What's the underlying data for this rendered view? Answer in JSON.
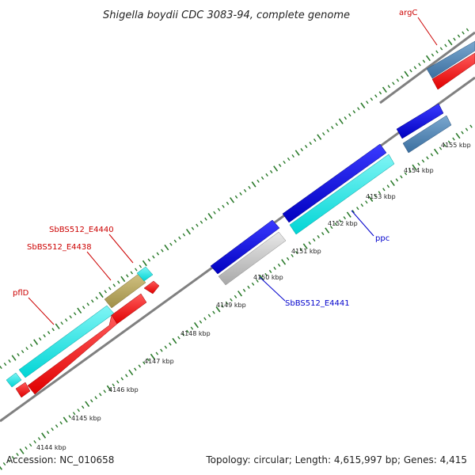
{
  "title": "Shigella boydii CDC 3083-94, complete genome",
  "footer": {
    "accession": "Accession: NC_010658",
    "summary": "Topology: circular; Length: 4,615,997 bp; Genes: 4,415"
  },
  "ticks": {
    "outer": [
      "4144 kbp",
      "4145 kbp",
      "4146 kbp",
      "4147 kbp",
      "4148 kbp",
      "4149 kbp",
      "4150 kbp"
    ],
    "inner": [
      "4151 kbp",
      "4152 kbp",
      "4153 kbp",
      "4154 kbp",
      "4155 kbp"
    ]
  },
  "genes": [
    {
      "name": "pflD",
      "color": "#cc0000",
      "label": "pflD"
    },
    {
      "name": "SbBS512_E4438",
      "color": "#cc0000",
      "label": "SbBS512_E4438"
    },
    {
      "name": "SbBS512_E4440",
      "color": "#cc0000",
      "label": "SbBS512_E4440"
    },
    {
      "name": "SbBS512_E4441",
      "color": "#0000cc",
      "label": "SbBS512_E4441"
    },
    {
      "name": "ppc",
      "color": "#0000cc",
      "label": "ppc"
    },
    {
      "name": "argC",
      "color": "#cc0000",
      "label": "argC"
    }
  ],
  "colors": {
    "cds_forward": "#00e5e5",
    "cds_reverse": "#ff0000",
    "blue_feature": "#0000e0",
    "steel_feature": "#4682b4",
    "gray_feature": "#c8c8c8",
    "olive_feature": "#b8a860",
    "backbone": "#808080",
    "tick_green": "#2a7a2a"
  }
}
